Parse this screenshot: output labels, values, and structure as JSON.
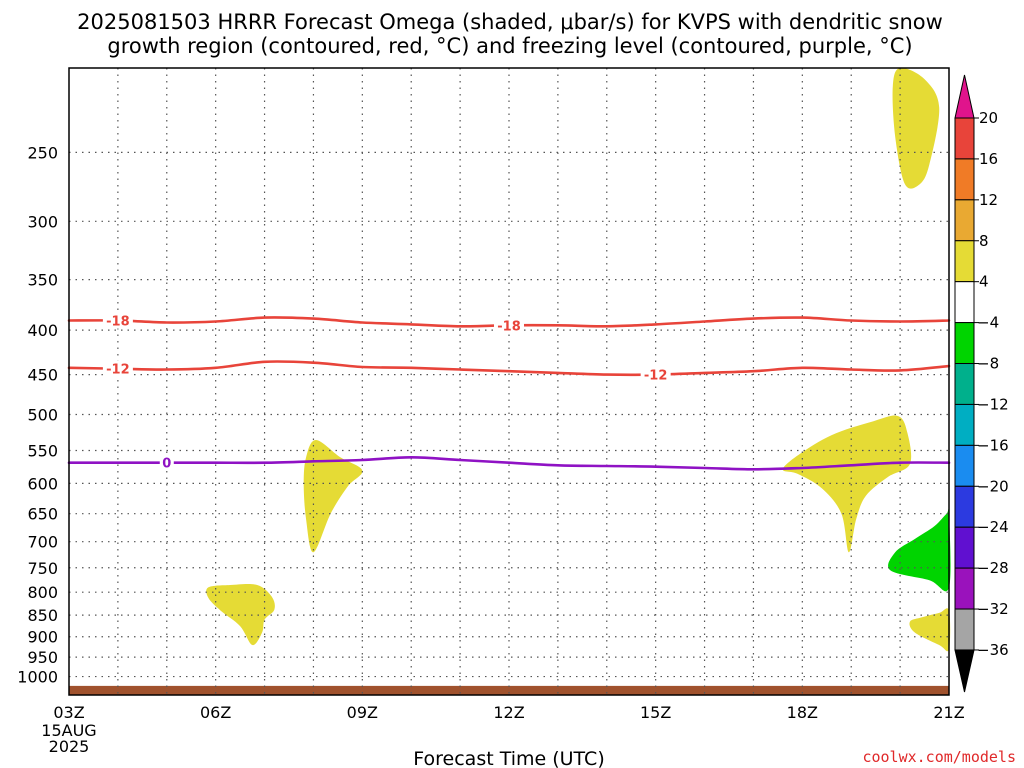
{
  "title_line1": "2025081503 HRRR Forecast Omega (shaded, μbar/s) for KVPS with dendritic snow",
  "title_line2": "growth region (contoured, red, °C) and freezing level (contoured, purple, °C)",
  "credit": "coolwx.com/models",
  "colors": {
    "grid": "#555555",
    "red_contour": "#e8443a",
    "purple_contour": "#8f12c4",
    "ground": "#a0522d",
    "yellow_fill": "#e5db35",
    "green_fill": "#00d400"
  },
  "chart_data": {
    "type": "contour",
    "xlabel": "Forecast Time (UTC)",
    "x_unit": "hours",
    "xlim": [
      3,
      21
    ],
    "x_ticks": [
      {
        "h": 3,
        "label": "03Z",
        "sub": [
          "15AUG",
          "2025"
        ]
      },
      {
        "h": 6,
        "label": "06Z"
      },
      {
        "h": 9,
        "label": "09Z"
      },
      {
        "h": 12,
        "label": "12Z"
      },
      {
        "h": 15,
        "label": "15Z"
      },
      {
        "h": 18,
        "label": "18Z"
      },
      {
        "h": 21,
        "label": "21Z"
      }
    ],
    "x_gridlines": [
      4,
      5,
      6,
      7,
      8,
      9,
      10,
      11,
      12,
      13,
      14,
      15,
      16,
      17,
      18,
      19,
      20
    ],
    "y_unit": "hPa",
    "y_axis": "pressure, reversed",
    "ylim": [
      1050,
      200
    ],
    "y_ticks": [
      250,
      300,
      350,
      400,
      450,
      500,
      550,
      600,
      650,
      700,
      750,
      800,
      850,
      900,
      950,
      1000
    ],
    "ground_below_hpa": 1025,
    "contours": [
      {
        "name": "dendritic_-18",
        "label": "-18",
        "color": "red",
        "points": [
          [
            3,
            390
          ],
          [
            4,
            390
          ],
          [
            5,
            392
          ],
          [
            6,
            391
          ],
          [
            7,
            387
          ],
          [
            8,
            388
          ],
          [
            9,
            392
          ],
          [
            10,
            394
          ],
          [
            11,
            396
          ],
          [
            12,
            395
          ],
          [
            13,
            395
          ],
          [
            14,
            396
          ],
          [
            15,
            394
          ],
          [
            16,
            391
          ],
          [
            17,
            388
          ],
          [
            18,
            387
          ],
          [
            19,
            390
          ],
          [
            20,
            391
          ],
          [
            21,
            390
          ]
        ],
        "label_positions": [
          [
            4,
            390
          ],
          [
            12,
            395
          ]
        ]
      },
      {
        "name": "dendritic_-12",
        "label": "-12",
        "color": "red",
        "points": [
          [
            3,
            442
          ],
          [
            4,
            443
          ],
          [
            5,
            444
          ],
          [
            6,
            442
          ],
          [
            7,
            435
          ],
          [
            8,
            436
          ],
          [
            9,
            441
          ],
          [
            10,
            442
          ],
          [
            11,
            444
          ],
          [
            12,
            446
          ],
          [
            13,
            448
          ],
          [
            14,
            450
          ],
          [
            15,
            450
          ],
          [
            16,
            448
          ],
          [
            17,
            446
          ],
          [
            18,
            442
          ],
          [
            19,
            444
          ],
          [
            20,
            445
          ],
          [
            21,
            440
          ]
        ],
        "label_positions": [
          [
            4,
            443
          ],
          [
            15,
            450
          ]
        ]
      },
      {
        "name": "freezing_level_0",
        "label": "0",
        "color": "purple",
        "points": [
          [
            3,
            568
          ],
          [
            4,
            568
          ],
          [
            5,
            568
          ],
          [
            6,
            568
          ],
          [
            7,
            568
          ],
          [
            8,
            566
          ],
          [
            9,
            564
          ],
          [
            10,
            560
          ],
          [
            11,
            564
          ],
          [
            12,
            568
          ],
          [
            13,
            572
          ],
          [
            14,
            573
          ],
          [
            15,
            574
          ],
          [
            16,
            576
          ],
          [
            17,
            578
          ],
          [
            18,
            576
          ],
          [
            19,
            572
          ],
          [
            20,
            568
          ],
          [
            21,
            568
          ]
        ],
        "label_positions": [
          [
            5,
            568
          ]
        ]
      }
    ],
    "shaded_regions": [
      {
        "category": "4 to 8",
        "color": "yellow",
        "points": [
          [
            20.0,
            200
          ],
          [
            20.5,
            206
          ],
          [
            20.8,
            222
          ],
          [
            20.6,
            258
          ],
          [
            20.4,
            272
          ],
          [
            20.1,
            272
          ],
          [
            19.9,
            240
          ],
          [
            19.85,
            210
          ]
        ]
      },
      {
        "category": "4 to 8",
        "color": "yellow",
        "points": [
          [
            8.05,
            535
          ],
          [
            8.55,
            560
          ],
          [
            9.0,
            580
          ],
          [
            8.7,
            605
          ],
          [
            8.35,
            650
          ],
          [
            8.0,
            720
          ],
          [
            7.85,
            660
          ],
          [
            7.8,
            600
          ],
          [
            7.85,
            560
          ]
        ]
      },
      {
        "category": "4 to 8",
        "color": "yellow",
        "points": [
          [
            5.85,
            790
          ],
          [
            6.3,
            785
          ],
          [
            6.85,
            785
          ],
          [
            7.15,
            810
          ],
          [
            7.2,
            838
          ],
          [
            7.0,
            860
          ],
          [
            6.95,
            890
          ],
          [
            6.75,
            920
          ],
          [
            6.5,
            875
          ],
          [
            6.1,
            840
          ],
          [
            5.85,
            812
          ]
        ]
      },
      {
        "category": "4 to 8",
        "color": "yellow",
        "points": [
          [
            17.6,
            578
          ],
          [
            17.95,
            555
          ],
          [
            18.6,
            528
          ],
          [
            19.4,
            510
          ],
          [
            19.95,
            502
          ],
          [
            20.15,
            525
          ],
          [
            20.2,
            570
          ],
          [
            19.75,
            590
          ],
          [
            19.3,
            620
          ],
          [
            19.1,
            660
          ],
          [
            18.95,
            720
          ],
          [
            18.8,
            650
          ],
          [
            18.4,
            608
          ],
          [
            17.9,
            585
          ]
        ]
      },
      {
        "category": "-8 to -4",
        "color": "green",
        "points": [
          [
            20.95,
            650
          ],
          [
            21.0,
            650
          ],
          [
            21.0,
            790
          ],
          [
            20.6,
            775
          ],
          [
            19.8,
            755
          ],
          [
            19.9,
            720
          ],
          [
            20.3,
            695
          ],
          [
            20.7,
            672
          ]
        ]
      },
      {
        "category": "4 to 8",
        "color": "yellow",
        "points": [
          [
            20.8,
            845
          ],
          [
            21.0,
            840
          ],
          [
            21.0,
            930
          ],
          [
            20.8,
            920
          ],
          [
            20.3,
            890
          ],
          [
            20.2,
            865
          ],
          [
            20.45,
            855
          ]
        ]
      }
    ],
    "colorbar": {
      "unit": "μbar/s",
      "labels": [
        "20",
        "16",
        "12",
        "8",
        "4",
        "−4",
        "−8",
        "−12",
        "−16",
        "−20",
        "−24",
        "−28",
        "−32",
        "−36"
      ],
      "segments": [
        {
          "from": 16,
          "to": 20,
          "color": "#e8443a"
        },
        {
          "from": 12,
          "to": 16,
          "color": "#f07b26"
        },
        {
          "from": 8,
          "to": 12,
          "color": "#e9a932"
        },
        {
          "from": 4,
          "to": 8,
          "color": "#e5db35"
        },
        {
          "from": -4,
          "to": 4,
          "color": "#ffffff"
        },
        {
          "from": -8,
          "to": -4,
          "color": "#00d400"
        },
        {
          "from": -12,
          "to": -8,
          "color": "#00b08c"
        },
        {
          "from": -16,
          "to": -12,
          "color": "#00aec2"
        },
        {
          "from": -20,
          "to": -16,
          "color": "#1a8cf0"
        },
        {
          "from": -24,
          "to": -20,
          "color": "#2c3ae0"
        },
        {
          "from": -28,
          "to": -24,
          "color": "#6010d0"
        },
        {
          "from": -32,
          "to": -28,
          "color": "#9a12bc"
        },
        {
          "from": -36,
          "to": -32,
          "color": "#a5a5a5"
        }
      ],
      "over_color": "#e0148c",
      "under_color": "#000000"
    }
  }
}
